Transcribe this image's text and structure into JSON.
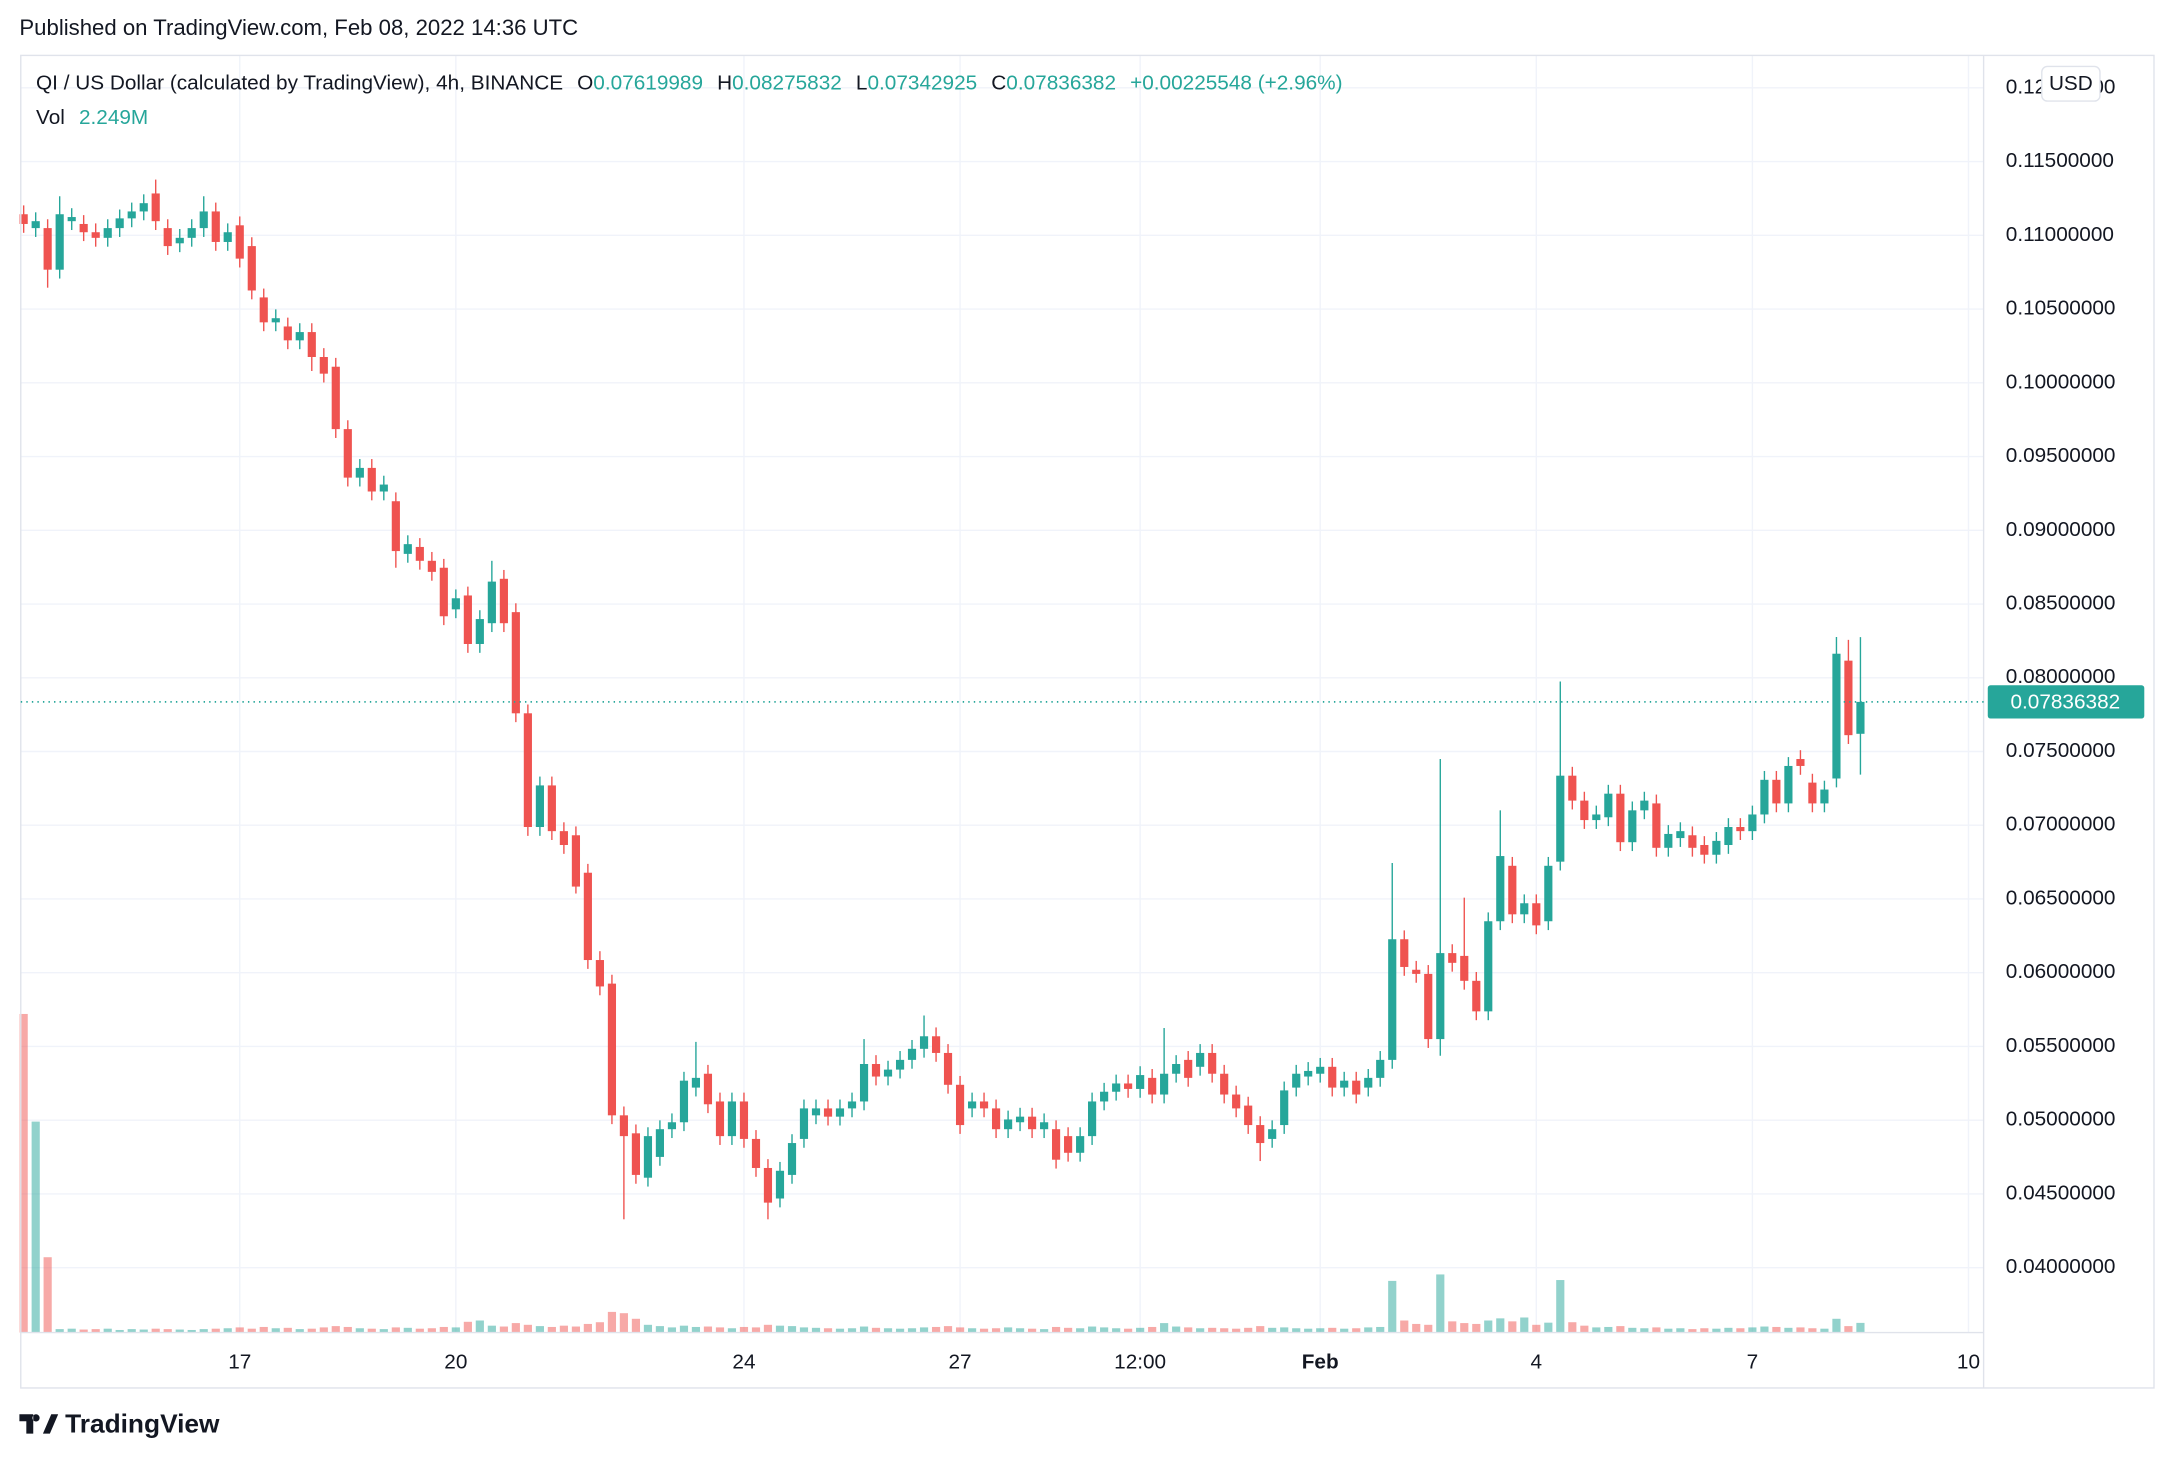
{
  "header": {
    "published": "Published on TradingView.com, Feb 08, 2022 14:36 UTC",
    "brand": "TradingView"
  },
  "chart_data": {
    "type": "candlestick",
    "symbol": "QI / US Dollar (calculated by TradingView), 4h, BINANCE",
    "legend": {
      "open": "O",
      "high": "H",
      "low": "L",
      "close": "C",
      "change": "+0.00225548 (+2.96%)"
    },
    "volume_name": "Vol",
    "volume_legend": "2.249M",
    "currency": "USD",
    "up_color": "#26a69a",
    "down_color": "#ef5350",
    "grid": true,
    "xlim": [
      13.96,
      41.21
    ],
    "ylim": [
      0.0356,
      0.1222
    ],
    "xticks": [
      17,
      20,
      24,
      27,
      {
        "value": 29.5,
        "label": "12:00"
      },
      {
        "value": 32,
        "label": "Feb"
      },
      {
        "value": 35,
        "label": "4"
      },
      {
        "value": 38,
        "label": "7"
      },
      {
        "value": 41,
        "label": "10"
      }
    ],
    "yticks": [
      {
        "value": 0.04,
        "label": "0.04000000"
      },
      {
        "value": 0.045,
        "label": "0.04500000"
      },
      {
        "value": 0.05,
        "label": "0.05000000"
      },
      {
        "value": 0.055,
        "label": "0.05500000"
      },
      {
        "value": 0.06,
        "label": "0.06000000"
      },
      {
        "value": 0.065,
        "label": "0.06500000"
      },
      {
        "value": 0.07,
        "label": "0.07000000"
      },
      {
        "value": 0.075,
        "label": "0.07500000"
      },
      {
        "value": 0.08,
        "label": "0.08000000"
      },
      {
        "value": 0.085,
        "label": "0.08500000"
      },
      {
        "value": 0.09,
        "label": "0.09000000"
      },
      {
        "value": 0.095,
        "label": "0.09500000"
      },
      {
        "value": 0.1,
        "label": "0.10000000"
      },
      {
        "value": 0.105,
        "label": "0.10500000"
      },
      {
        "value": 0.11,
        "label": "0.11000000"
      },
      {
        "value": 0.115,
        "label": "0.11500000"
      },
      {
        "value": 0.12,
        "label": "0.12000000"
      }
    ],
    "x": [
      14,
      14.167,
      14.333,
      14.5,
      14.667,
      14.833,
      15,
      15.167,
      15.333,
      15.5,
      15.667,
      15.833,
      16,
      16.167,
      16.333,
      16.5,
      16.667,
      16.833,
      17,
      17.167,
      17.333,
      17.5,
      17.667,
      17.833,
      18,
      18.167,
      18.333,
      18.5,
      18.667,
      18.833,
      19,
      19.167,
      19.333,
      19.5,
      19.667,
      19.833,
      20,
      20.167,
      20.333,
      20.5,
      20.667,
      20.833,
      21,
      21.167,
      21.333,
      21.5,
      21.667,
      21.833,
      22,
      22.167,
      22.333,
      22.5,
      22.667,
      22.833,
      23,
      23.167,
      23.333,
      23.5,
      23.667,
      23.833,
      24,
      24.167,
      24.333,
      24.5,
      24.667,
      24.833,
      25,
      25.167,
      25.333,
      25.5,
      25.667,
      25.833,
      26,
      26.167,
      26.333,
      26.5,
      26.667,
      26.833,
      27,
      27.167,
      27.333,
      27.5,
      27.667,
      27.833,
      28,
      28.167,
      28.333,
      28.5,
      28.667,
      28.833,
      29,
      29.167,
      29.333,
      29.5,
      29.667,
      29.833,
      30,
      30.167,
      30.333,
      30.5,
      30.667,
      30.833,
      31,
      31.167,
      31.333,
      31.5,
      31.667,
      31.833,
      32,
      32.167,
      32.333,
      32.5,
      32.667,
      32.833,
      33,
      33.167,
      33.333,
      33.5,
      33.667,
      33.833,
      34,
      34.167,
      34.333,
      34.5,
      34.667,
      34.833,
      35,
      35.167,
      35.333,
      35.5,
      35.667,
      35.833,
      36,
      36.167,
      36.333,
      36.5,
      36.667,
      36.833,
      37,
      37.167,
      37.333,
      37.5,
      37.667,
      37.833,
      38,
      38.167,
      38.333,
      38.5,
      38.667,
      38.833,
      39,
      39.167,
      39.333,
      39.5
    ],
    "open": [
      0.11143,
      0.11049,
      0.11049,
      0.10767,
      0.11096,
      0.11077,
      0.11021,
      0.10983,
      0.11049,
      0.11115,
      0.11162,
      0.11284,
      0.11049,
      0.10946,
      0.10983,
      0.11049,
      0.11162,
      0.10955,
      0.11068,
      0.10927,
      0.10579,
      0.1041,
      0.10382,
      0.10288,
      0.10344,
      0.10175,
      0.10109,
      0.09686,
      0.09357,
      0.09423,
      0.09263,
      0.09197,
      0.0884,
      0.08887,
      0.08793,
      0.08746,
      0.08464,
      0.08558,
      0.08229,
      0.0837,
      0.08671,
      0.08445,
      0.07759,
      0.06988,
      0.0727,
      0.0696,
      0.06932,
      0.06678,
      0.06086,
      0.05926,
      0.05033,
      0.04911,
      0.0461,
      0.04751,
      0.04939,
      0.04986,
      0.05221,
      0.05315,
      0.05127,
      0.04892,
      0.05127,
      0.04873,
      0.04676,
      0.04469,
      0.04629,
      0.04873,
      0.05033,
      0.0508,
      0.05024,
      0.0508,
      0.05127,
      0.05381,
      0.05296,
      0.05343,
      0.05409,
      0.05484,
      0.05569,
      0.05456,
      0.0524,
      0.0508,
      0.05127,
      0.0508,
      0.04939,
      0.04986,
      0.05024,
      0.04939,
      0.04939,
      0.04892,
      0.04779,
      0.04892,
      0.05127,
      0.05193,
      0.05249,
      0.05212,
      0.05287,
      0.05174,
      0.05315,
      0.05409,
      0.05362,
      0.05456,
      0.05315,
      0.05174,
      0.05099,
      0.04967,
      0.04873,
      0.04967,
      0.05221,
      0.05296,
      0.05315,
      0.05362,
      0.05221,
      0.05268,
      0.05221,
      0.05287,
      0.05409,
      0.06227,
      0.0602,
      0.05992,
      0.0555,
      0.06133,
      0.06114,
      0.05945,
      0.05738,
      0.06349,
      0.06725,
      0.06396,
      0.06471,
      0.06349,
      0.06753,
      0.07336,
      0.07167,
      0.07035,
      0.07054,
      0.07214,
      0.06885,
      0.07101,
      0.07148,
      0.06847,
      0.06913,
      0.06932,
      0.06866,
      0.068,
      0.06866,
      0.06988,
      0.0696,
      0.07073,
      0.07308,
      0.07148,
      0.07449,
      0.07289,
      0.07148,
      0.07317,
      0.08116,
      0.07619989
    ],
    "high": [
      0.11203,
      0.11156,
      0.11109,
      0.11265,
      0.11184,
      0.11137,
      0.11081,
      0.11109,
      0.11175,
      0.11222,
      0.11278,
      0.11378,
      0.11109,
      0.11043,
      0.11109,
      0.11265,
      0.11222,
      0.11081,
      0.11128,
      0.10987,
      0.10639,
      0.10498,
      0.10442,
      0.10404,
      0.10404,
      0.10235,
      0.10169,
      0.09746,
      0.09483,
      0.09483,
      0.0937,
      0.09257,
      0.08966,
      0.08947,
      0.08853,
      0.08806,
      0.08599,
      0.08618,
      0.08458,
      0.08793,
      0.08731,
      0.08505,
      0.07819,
      0.0733,
      0.0733,
      0.0702,
      0.06992,
      0.06738,
      0.06146,
      0.05986,
      0.05093,
      0.04971,
      0.04952,
      0.04999,
      0.05046,
      0.05328,
      0.05531,
      0.05375,
      0.05187,
      0.05187,
      0.05187,
      0.04933,
      0.04736,
      0.04717,
      0.04905,
      0.0514,
      0.0514,
      0.0514,
      0.0514,
      0.05187,
      0.0555,
      0.05441,
      0.05403,
      0.05469,
      0.05544,
      0.0571,
      0.05629,
      0.05516,
      0.053,
      0.05187,
      0.05187,
      0.0514,
      0.05065,
      0.05084,
      0.05084,
      0.05046,
      0.04999,
      0.04952,
      0.04952,
      0.05187,
      0.05253,
      0.05309,
      0.05309,
      0.05366,
      0.05347,
      0.05625,
      0.05441,
      0.05469,
      0.05516,
      0.05516,
      0.05375,
      0.05234,
      0.05159,
      0.05027,
      0.04999,
      0.05262,
      0.05375,
      0.05394,
      0.05422,
      0.05422,
      0.05328,
      0.05328,
      0.05347,
      0.05469,
      0.06744,
      0.06287,
      0.0608,
      0.06052,
      0.07449,
      0.06193,
      0.06509,
      0.06005,
      0.06409,
      0.07101,
      0.06785,
      0.06531,
      0.06531,
      0.06785,
      0.07975,
      0.07396,
      0.07227,
      0.07133,
      0.07274,
      0.07274,
      0.07161,
      0.07227,
      0.07208,
      0.07001,
      0.0702,
      0.06992,
      0.06926,
      0.06954,
      0.07048,
      0.07048,
      0.07133,
      0.07368,
      0.07368,
      0.07462,
      0.07509,
      0.07349,
      0.07302,
      0.08276,
      0.08257,
      0.08275832
    ],
    "low": [
      0.11017,
      0.10989,
      0.10645,
      0.10707,
      0.11036,
      0.10961,
      0.10923,
      0.10923,
      0.10989,
      0.11055,
      0.11102,
      0.11036,
      0.10867,
      0.10886,
      0.10923,
      0.10989,
      0.10895,
      0.10895,
      0.10782,
      0.10566,
      0.1035,
      0.1035,
      0.10228,
      0.10228,
      0.1008,
      0.10002,
      0.09626,
      0.09297,
      0.09297,
      0.09203,
      0.09203,
      0.08746,
      0.0878,
      0.08733,
      0.08658,
      0.08357,
      0.08404,
      0.08169,
      0.08169,
      0.0831,
      0.0831,
      0.07699,
      0.06928,
      0.06928,
      0.069,
      0.06806,
      0.06537,
      0.06026,
      0.05847,
      0.04973,
      0.04328,
      0.04569,
      0.0455,
      0.04691,
      0.04879,
      0.04926,
      0.05161,
      0.05048,
      0.04832,
      0.04832,
      0.04813,
      0.04616,
      0.04328,
      0.04409,
      0.04569,
      0.04813,
      0.04973,
      0.04964,
      0.04964,
      0.0502,
      0.05067,
      0.05236,
      0.05236,
      0.05283,
      0.05349,
      0.05424,
      0.05396,
      0.0518,
      0.04907,
      0.0502,
      0.0502,
      0.04879,
      0.04879,
      0.04926,
      0.04879,
      0.04879,
      0.04672,
      0.04719,
      0.04719,
      0.04832,
      0.05067,
      0.05133,
      0.05152,
      0.05152,
      0.05114,
      0.05114,
      0.05255,
      0.05227,
      0.05302,
      0.05255,
      0.05114,
      0.0502,
      0.04907,
      0.04723,
      0.04813,
      0.04907,
      0.05161,
      0.05236,
      0.05255,
      0.05161,
      0.05161,
      0.05114,
      0.05161,
      0.05227,
      0.05349,
      0.05979,
      0.05932,
      0.0549,
      0.05437,
      0.06007,
      0.05885,
      0.05678,
      0.05678,
      0.06289,
      0.06336,
      0.06336,
      0.06261,
      0.06289,
      0.06693,
      0.07107,
      0.06975,
      0.06975,
      0.06994,
      0.06825,
      0.06825,
      0.07041,
      0.06787,
      0.06787,
      0.06853,
      0.06787,
      0.0674,
      0.0674,
      0.06806,
      0.069,
      0.069,
      0.07013,
      0.07088,
      0.07088,
      0.07342,
      0.07088,
      0.07088,
      0.07257,
      0.07551,
      0.07342925
    ],
    "close": [
      0.11077,
      0.11096,
      0.10767,
      0.11143,
      0.11124,
      0.11021,
      0.10983,
      0.11049,
      0.11115,
      0.11162,
      0.11218,
      0.11096,
      0.10927,
      0.10983,
      0.11049,
      0.11162,
      0.10955,
      0.11021,
      0.10842,
      0.10626,
      0.1041,
      0.10438,
      0.10288,
      0.10344,
      0.10175,
      0.10062,
      0.09686,
      0.09357,
      0.09423,
      0.09263,
      0.0931,
      0.08859,
      0.08906,
      0.08793,
      0.08718,
      0.08417,
      0.08539,
      0.08229,
      0.08398,
      0.08652,
      0.0837,
      0.07759,
      0.06988,
      0.0727,
      0.0696,
      0.06866,
      0.06584,
      0.06086,
      0.05907,
      0.05033,
      0.04892,
      0.04629,
      0.04892,
      0.04939,
      0.04986,
      0.05268,
      0.05287,
      0.05108,
      0.04892,
      0.05127,
      0.04873,
      0.04676,
      0.04441,
      0.04657,
      0.04845,
      0.0508,
      0.0508,
      0.05024,
      0.0508,
      0.05127,
      0.05381,
      0.05296,
      0.05343,
      0.05409,
      0.05484,
      0.05569,
      0.05456,
      0.0524,
      0.04967,
      0.05127,
      0.0508,
      0.04939,
      0.05005,
      0.05024,
      0.04939,
      0.04986,
      0.04732,
      0.04779,
      0.04892,
      0.05127,
      0.05193,
      0.05249,
      0.05212,
      0.05306,
      0.05174,
      0.05315,
      0.05381,
      0.05287,
      0.05456,
      0.05315,
      0.05174,
      0.0508,
      0.04967,
      0.04845,
      0.04939,
      0.05202,
      0.05315,
      0.05334,
      0.05362,
      0.05221,
      0.05268,
      0.05174,
      0.05287,
      0.05409,
      0.06227,
      0.06039,
      0.05992,
      0.0555,
      0.06133,
      0.06067,
      0.05945,
      0.05738,
      0.06349,
      0.06791,
      0.06396,
      0.06471,
      0.06321,
      0.06725,
      0.07336,
      0.07167,
      0.07035,
      0.07073,
      0.07214,
      0.06885,
      0.07101,
      0.07167,
      0.06847,
      0.06941,
      0.0696,
      0.06847,
      0.068,
      0.06894,
      0.06988,
      0.0696,
      0.07073,
      0.07308,
      0.07148,
      0.07402,
      0.07402,
      0.07148,
      0.07242,
      0.08163,
      0.07610834,
      0.07836382
    ],
    "volume": [
      74000000,
      49000000,
      17500000,
      800000,
      900000,
      700000,
      800000,
      900000,
      600000,
      800000,
      700000,
      900000,
      800000,
      700000,
      600000,
      800000,
      900000,
      1000000,
      1200000,
      900000,
      1300000,
      1000000,
      1100000,
      800000,
      900000,
      1200000,
      1500000,
      1300000,
      1000000,
      900000,
      800000,
      1200000,
      1100000,
      900000,
      1000000,
      1300000,
      1200000,
      2500000,
      2800000,
      1600000,
      1400000,
      2200000,
      1800000,
      1500000,
      1300000,
      1600000,
      1400000,
      2000000,
      2400000,
      4800000,
      4500000,
      3200000,
      1800000,
      1500000,
      1200000,
      1600000,
      1300000,
      1400000,
      1200000,
      1000000,
      1300000,
      1200000,
      1800000,
      1600000,
      1500000,
      1200000,
      1100000,
      1000000,
      900000,
      1000000,
      1400000,
      1100000,
      1000000,
      900000,
      1000000,
      1200000,
      1300000,
      1500000,
      1200000,
      1000000,
      900000,
      1000000,
      1200000,
      1000000,
      900000,
      800000,
      1300000,
      1100000,
      1000000,
      1400000,
      1200000,
      1000000,
      900000,
      1100000,
      1300000,
      2200000,
      1400000,
      1200000,
      1000000,
      1100000,
      1000000,
      900000,
      1100000,
      1500000,
      1100000,
      1200000,
      1000000,
      900000,
      1000000,
      1100000,
      900000,
      1000000,
      1200000,
      1300000,
      12000000,
      2800000,
      2000000,
      1800000,
      13500000,
      2600000,
      2200000,
      2000000,
      2800000,
      3300000,
      2600000,
      3500000,
      1800000,
      2300000,
      12200000,
      2400000,
      1600000,
      1200000,
      1300000,
      1500000,
      1100000,
      1000000,
      1200000,
      900000,
      1000000,
      800000,
      1000000,
      900000,
      1100000,
      1000000,
      1200000,
      1400000,
      1300000,
      1100000,
      1200000,
      1000000,
      900000,
      3200000,
      1500000,
      2249000
    ]
  }
}
